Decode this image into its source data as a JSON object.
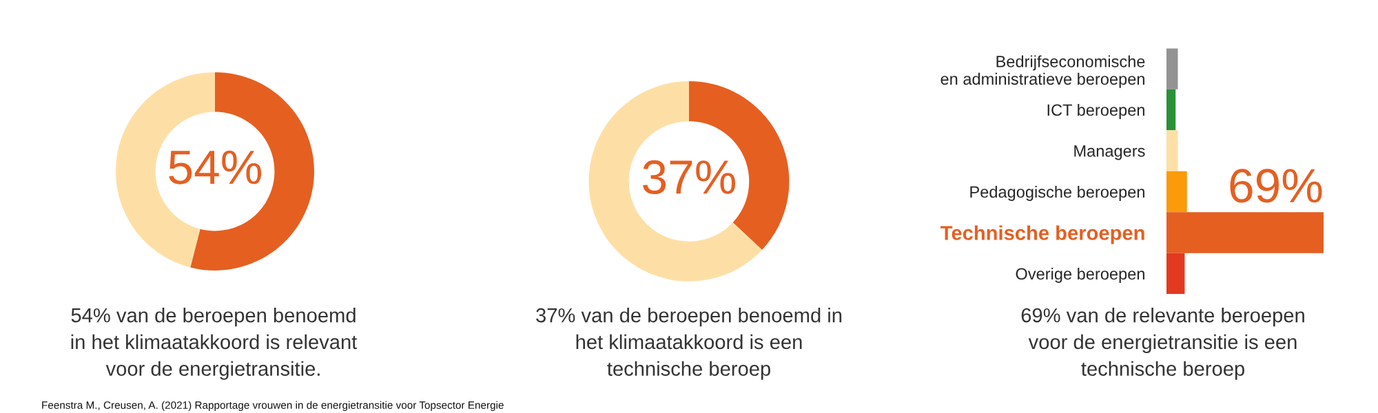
{
  "chart_data": [
    {
      "type": "donut",
      "categories": [
        null,
        null
      ],
      "values": [
        54,
        46
      ],
      "colors": [
        "#e55f21",
        "#fddfa6"
      ],
      "value_labels": [
        "54%",
        null
      ],
      "annotations": [
        "54% van de beroepen benoemd\nin het klimaatakkoord is relevant\nvoor de energietransitie.",
        "Feenstra M., Creusen, A. (2021) Rapportage vrouwen in de energietransitie voor Topsector Energie"
      ]
    },
    {
      "type": "donut",
      "categories": [
        null,
        null
      ],
      "values": [
        37,
        63
      ],
      "colors": [
        "#e55f21",
        "#fddfa6"
      ],
      "value_labels": [
        "37%",
        null
      ],
      "annotations": [
        "37% van de beroepen benoemd in\nhet klimaatakkoord is een\ntechnische beroep"
      ]
    },
    {
      "type": "bar",
      "orientation": "horizontal",
      "categories": [
        "Bedrijfseconomische\nen administratieve beroepen",
        "ICT beroepen",
        "Managers",
        "Pedagogische beroepen",
        "Technische beroepen",
        "Overige beroepen"
      ],
      "values": [
        5,
        4,
        5,
        9,
        69,
        8
      ],
      "colors": [
        "#939393",
        "#2a9139",
        "#fddfa6",
        "#fb9a0b",
        "#e55f21",
        "#e23a20"
      ],
      "value_labels": [
        null,
        null,
        null,
        null,
        "69%",
        null
      ],
      "annotations": [
        "69% van de relevante beroepen\nvoor de energietransitie is een\ntechnische beroep"
      ]
    }
  ]
}
